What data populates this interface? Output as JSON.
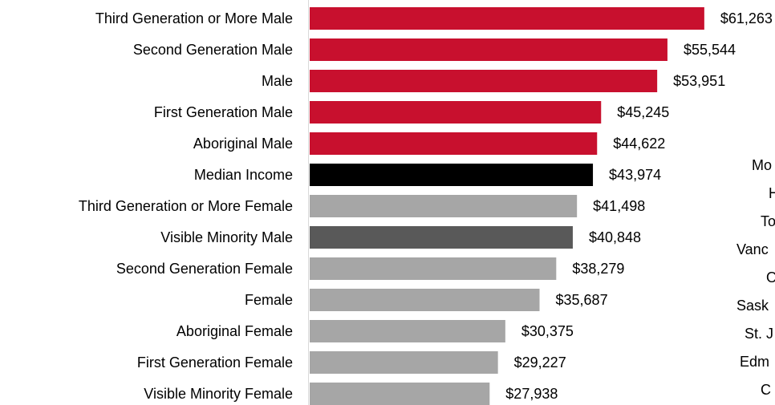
{
  "chart_data": {
    "type": "bar",
    "orientation": "horizontal",
    "categories": [
      "Third Generation or More Male",
      "Second Generation Male",
      "Male",
      "First Generation Male",
      "Aboriginal Male",
      "Median Income",
      "Third Generation or More Female",
      "Visible Minority Male",
      "Second Generation Female",
      "Female",
      "Aboriginal Female",
      "First Generation Female",
      "Visible Minority Female"
    ],
    "values": [
      61263,
      55544,
      53951,
      45245,
      44622,
      43974,
      41498,
      40848,
      38279,
      35687,
      30375,
      29227,
      27938
    ],
    "value_labels": [
      "$61,263",
      "$55,544",
      "$53,951",
      "$45,245",
      "$44,622",
      "$43,974",
      "$41,498",
      "$40,848",
      "$38,279",
      "$35,687",
      "$30,375",
      "$29,227",
      "$27,938"
    ],
    "colors": [
      "#c8102e",
      "#c8102e",
      "#c8102e",
      "#c8102e",
      "#c8102e",
      "#000000",
      "#a6a6a6",
      "#595959",
      "#a6a6a6",
      "#a6a6a6",
      "#a6a6a6",
      "#a6a6a6",
      "#a6a6a6"
    ],
    "xlim": [
      0,
      70000
    ],
    "annotations": [
      "Mo",
      "H",
      "To",
      "Vanc",
      "O",
      "Sask",
      "St. J",
      "Edm",
      "C"
    ]
  }
}
